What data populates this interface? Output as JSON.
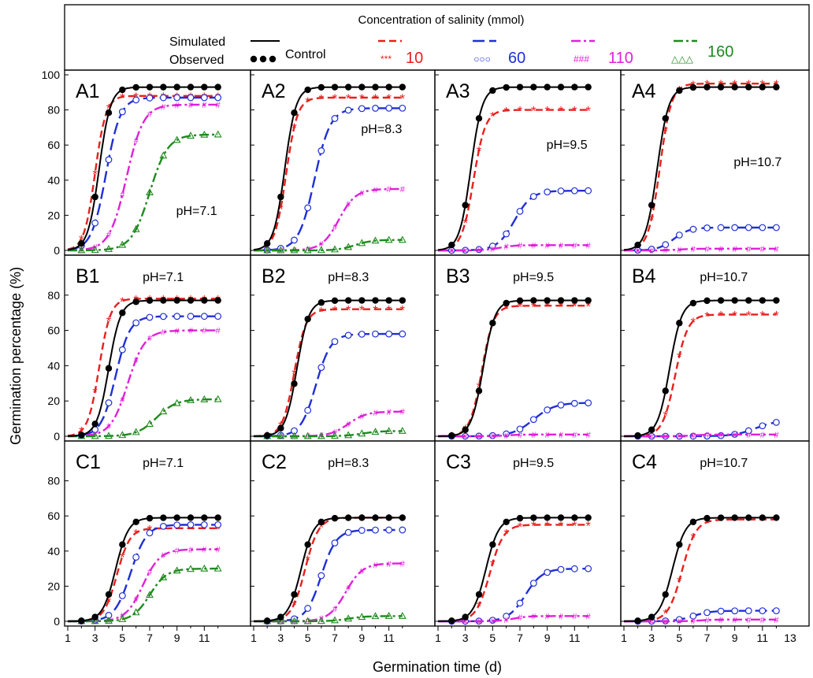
{
  "figure": {
    "xlabel": "Germination time (d)",
    "ylabel": "Germination percentage (%)"
  },
  "legend": {
    "title": "Concentration of salinity (mmol)",
    "simulated_label": "Simulated",
    "observed_label": "Observed",
    "control_label": "Control",
    "entries": [
      {
        "name": "10",
        "color": "#e8201e",
        "marker": "***"
      },
      {
        "name": "60",
        "color": "#1f2fd6",
        "marker": "○○○"
      },
      {
        "name": "110",
        "color": "#e020d8",
        "marker": "###"
      },
      {
        "name": "160",
        "color": "#1e8a1e",
        "marker": "△△△"
      }
    ]
  },
  "chart_data": {
    "type": "line",
    "xlim": [
      1,
      13
    ],
    "ylim": [
      0,
      100
    ],
    "xticks": [
      "1",
      "3",
      "5",
      "7",
      "9",
      "11"
    ],
    "xticks_last_column": [
      "1",
      "3",
      "5",
      "7",
      "9",
      "11",
      "13"
    ],
    "yticks_top_row": [
      "0",
      "20",
      "40",
      "60",
      "80",
      "100"
    ],
    "yticks_other_rows": [
      "0",
      "20",
      "40",
      "60",
      "80"
    ],
    "series_styles": {
      "control": {
        "color": "#000000",
        "marker": "filled-circle",
        "dash": "solid"
      },
      "10": {
        "color": "#e8201e",
        "marker": "asterisk",
        "dash": "dash"
      },
      "60": {
        "color": "#1f2fd6",
        "marker": "open-circle",
        "dash": "longdash"
      },
      "110": {
        "color": "#e020d8",
        "marker": "hash",
        "dash": "dashdot"
      },
      "160": {
        "color": "#1e8a1e",
        "marker": "triangle",
        "dash": "dashdot"
      }
    },
    "panels": [
      {
        "label": "A1",
        "ph": "pH=7.1",
        "series": [
          {
            "name": "control",
            "max": 93,
            "t50": 3.3,
            "slope": 2.4
          },
          {
            "name": "10",
            "max": 88,
            "t50": 3.0,
            "slope": 2.5
          },
          {
            "name": "60",
            "max": 87,
            "t50": 3.8,
            "slope": 1.9
          },
          {
            "name": "110",
            "max": 83,
            "t50": 5.3,
            "slope": 1.6
          },
          {
            "name": "160",
            "max": 66,
            "t50": 7.0,
            "slope": 1.5
          }
        ]
      },
      {
        "label": "A2",
        "ph": "pH=8.3",
        "series": [
          {
            "name": "control",
            "max": 93,
            "t50": 3.3,
            "slope": 2.4
          },
          {
            "name": "10",
            "max": 87,
            "t50": 3.4,
            "slope": 2.4
          },
          {
            "name": "60",
            "max": 81,
            "t50": 5.5,
            "slope": 1.7
          },
          {
            "name": "110",
            "max": 35,
            "t50": 7.3,
            "slope": 1.6
          },
          {
            "name": "160",
            "max": 6,
            "t50": 8.5,
            "slope": 1.6
          }
        ]
      },
      {
        "label": "A3",
        "ph": "pH=9.5",
        "series": [
          {
            "name": "control",
            "max": 93,
            "t50": 3.4,
            "slope": 2.4
          },
          {
            "name": "10",
            "max": 80,
            "t50": 3.6,
            "slope": 2.3
          },
          {
            "name": "60",
            "max": 34,
            "t50": 6.6,
            "slope": 1.6
          },
          {
            "name": "110",
            "max": 3,
            "t50": 5.5,
            "slope": 1.8
          }
        ]
      },
      {
        "label": "A4",
        "ph": "pH=10.7",
        "series": [
          {
            "name": "control",
            "max": 93,
            "t50": 3.4,
            "slope": 2.4
          },
          {
            "name": "10",
            "max": 95,
            "t50": 3.6,
            "slope": 2.4
          },
          {
            "name": "60",
            "max": 13,
            "t50": 4.6,
            "slope": 1.8
          },
          {
            "name": "110",
            "max": 1,
            "t50": 5.0,
            "slope": 1.8
          }
        ]
      },
      {
        "label": "B1",
        "ph": "pH=7.1",
        "series": [
          {
            "name": "control",
            "max": 77,
            "t50": 4.0,
            "slope": 2.3
          },
          {
            "name": "10",
            "max": 78,
            "t50": 3.3,
            "slope": 2.4
          },
          {
            "name": "60",
            "max": 68,
            "t50": 4.5,
            "slope": 1.9
          },
          {
            "name": "110",
            "max": 60,
            "t50": 5.4,
            "slope": 1.6
          },
          {
            "name": "160",
            "max": 21,
            "t50": 7.5,
            "slope": 1.4
          }
        ]
      },
      {
        "label": "B2",
        "ph": "pH=8.3",
        "series": [
          {
            "name": "control",
            "max": 77,
            "t50": 4.2,
            "slope": 2.3
          },
          {
            "name": "10",
            "max": 72,
            "t50": 4.0,
            "slope": 2.3
          },
          {
            "name": "60",
            "max": 58,
            "t50": 5.6,
            "slope": 1.8
          },
          {
            "name": "110",
            "max": 14,
            "t50": 8.0,
            "slope": 1.5
          },
          {
            "name": "160",
            "max": 3,
            "t50": 9.0,
            "slope": 1.5
          }
        ]
      },
      {
        "label": "B3",
        "ph": "pH=9.5",
        "series": [
          {
            "name": "control",
            "max": 77,
            "t50": 4.3,
            "slope": 2.3
          },
          {
            "name": "10",
            "max": 74,
            "t50": 4.2,
            "slope": 2.3
          },
          {
            "name": "60",
            "max": 19,
            "t50": 8.0,
            "slope": 1.3
          },
          {
            "name": "110",
            "max": 1,
            "t50": 6.0,
            "slope": 1.8
          }
        ]
      },
      {
        "label": "B4",
        "ph": "pH=10.7",
        "series": [
          {
            "name": "control",
            "max": 77,
            "t50": 4.3,
            "slope": 2.3
          },
          {
            "name": "10",
            "max": 69,
            "t50": 4.7,
            "slope": 2.2
          },
          {
            "name": "60",
            "max": 9,
            "t50": 10.5,
            "slope": 1.3
          },
          {
            "name": "110",
            "max": 1,
            "t50": 6.0,
            "slope": 1.8
          }
        ]
      },
      {
        "label": "C1",
        "ph": "pH=7.1",
        "series": [
          {
            "name": "control",
            "max": 59,
            "t50": 4.5,
            "slope": 2.1
          },
          {
            "name": "10",
            "max": 53,
            "t50": 4.6,
            "slope": 2.1
          },
          {
            "name": "60",
            "max": 55,
            "t50": 5.6,
            "slope": 1.7
          },
          {
            "name": "110",
            "max": 41,
            "t50": 6.5,
            "slope": 1.6
          },
          {
            "name": "160",
            "max": 30,
            "t50": 7.0,
            "slope": 1.6
          }
        ]
      },
      {
        "label": "C2",
        "ph": "pH=8.3",
        "series": [
          {
            "name": "control",
            "max": 59,
            "t50": 4.5,
            "slope": 2.1
          },
          {
            "name": "10",
            "max": 59,
            "t50": 4.8,
            "slope": 2.0
          },
          {
            "name": "60",
            "max": 52,
            "t50": 6.0,
            "slope": 1.8
          },
          {
            "name": "110",
            "max": 33,
            "t50": 7.8,
            "slope": 1.6
          },
          {
            "name": "160",
            "max": 3,
            "t50": 8.0,
            "slope": 1.5
          }
        ]
      },
      {
        "label": "C3",
        "ph": "pH=9.5",
        "series": [
          {
            "name": "control",
            "max": 59,
            "t50": 4.5,
            "slope": 2.1
          },
          {
            "name": "10",
            "max": 55,
            "t50": 4.8,
            "slope": 2.0
          },
          {
            "name": "60",
            "max": 30,
            "t50": 7.4,
            "slope": 1.6
          },
          {
            "name": "110",
            "max": 3,
            "t50": 6.5,
            "slope": 1.8
          }
        ]
      },
      {
        "label": "C4",
        "ph": "pH=10.7",
        "series": [
          {
            "name": "control",
            "max": 59,
            "t50": 4.5,
            "slope": 2.1
          },
          {
            "name": "10",
            "max": 58,
            "t50": 5.2,
            "slope": 2.0
          },
          {
            "name": "60",
            "max": 6,
            "t50": 6.0,
            "slope": 1.6
          },
          {
            "name": "110",
            "max": 1,
            "t50": 6.5,
            "slope": 1.8
          }
        ]
      }
    ],
    "observed_days": [
      2,
      3,
      4,
      5,
      6,
      7,
      8,
      9,
      10,
      11,
      12
    ]
  }
}
